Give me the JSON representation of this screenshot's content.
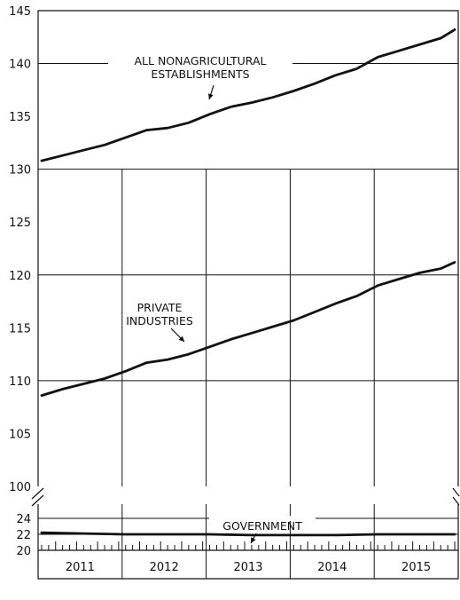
{
  "chart_data": {
    "type": "line",
    "title": "",
    "xlabel": "",
    "ylabel": "",
    "x_labels": [
      "2011",
      "2012",
      "2013",
      "2014",
      "2015"
    ],
    "x_range": [
      "2011-01",
      "2015-12"
    ],
    "upper_panel": {
      "ylim": [
        100,
        145
      ],
      "yticks": [
        "100",
        "105",
        "110",
        "115",
        "120",
        "125",
        "130",
        "135",
        "140",
        "145"
      ],
      "gridlines": [
        110,
        120,
        130,
        140
      ]
    },
    "lower_panel": {
      "ylim": [
        20,
        24
      ],
      "yticks": [
        "20",
        "22",
        "24"
      ],
      "gridlines": [
        22,
        24
      ]
    },
    "axis_break": true,
    "series": [
      {
        "name": "ALL NONAGRICULTURAL ESTABLISHMENTS",
        "label_lines": [
          "ALL NONAGRICULTURAL",
          "ESTABLISHMENTS"
        ],
        "panel": "upper",
        "points": [
          [
            0,
            130.8
          ],
          [
            3,
            131.3
          ],
          [
            6,
            131.8
          ],
          [
            9,
            132.3
          ],
          [
            12,
            133.0
          ],
          [
            15,
            133.7
          ],
          [
            18,
            133.9
          ],
          [
            21,
            134.4
          ],
          [
            24,
            135.2
          ],
          [
            27,
            135.9
          ],
          [
            30,
            136.3
          ],
          [
            33,
            136.8
          ],
          [
            36,
            137.4
          ],
          [
            39,
            138.1
          ],
          [
            42,
            138.9
          ],
          [
            45,
            139.5
          ],
          [
            48,
            140.6
          ],
          [
            51,
            141.2
          ],
          [
            54,
            141.8
          ],
          [
            57,
            142.4
          ],
          [
            59,
            143.2
          ]
        ]
      },
      {
        "name": "PRIVATE INDUSTRIES",
        "label_lines": [
          "PRIVATE",
          "INDUSTRIES"
        ],
        "panel": "upper",
        "points": [
          [
            0,
            108.6
          ],
          [
            3,
            109.2
          ],
          [
            6,
            109.7
          ],
          [
            9,
            110.2
          ],
          [
            12,
            110.9
          ],
          [
            15,
            111.7
          ],
          [
            18,
            112.0
          ],
          [
            21,
            112.5
          ],
          [
            24,
            113.2
          ],
          [
            27,
            113.9
          ],
          [
            30,
            114.5
          ],
          [
            33,
            115.1
          ],
          [
            36,
            115.7
          ],
          [
            39,
            116.5
          ],
          [
            42,
            117.3
          ],
          [
            45,
            118.0
          ],
          [
            48,
            119.0
          ],
          [
            51,
            119.6
          ],
          [
            54,
            120.2
          ],
          [
            57,
            120.6
          ],
          [
            59,
            121.2
          ]
        ]
      },
      {
        "name": "GOVERNMENT",
        "label_lines": [
          "GOVERNMENT"
        ],
        "panel": "lower",
        "points": [
          [
            0,
            22.2
          ],
          [
            6,
            22.1
          ],
          [
            12,
            22.0
          ],
          [
            18,
            22.0
          ],
          [
            24,
            22.0
          ],
          [
            30,
            21.9
          ],
          [
            36,
            21.9
          ],
          [
            42,
            21.9
          ],
          [
            48,
            22.0
          ],
          [
            54,
            22.0
          ],
          [
            59,
            22.0
          ]
        ]
      }
    ]
  }
}
